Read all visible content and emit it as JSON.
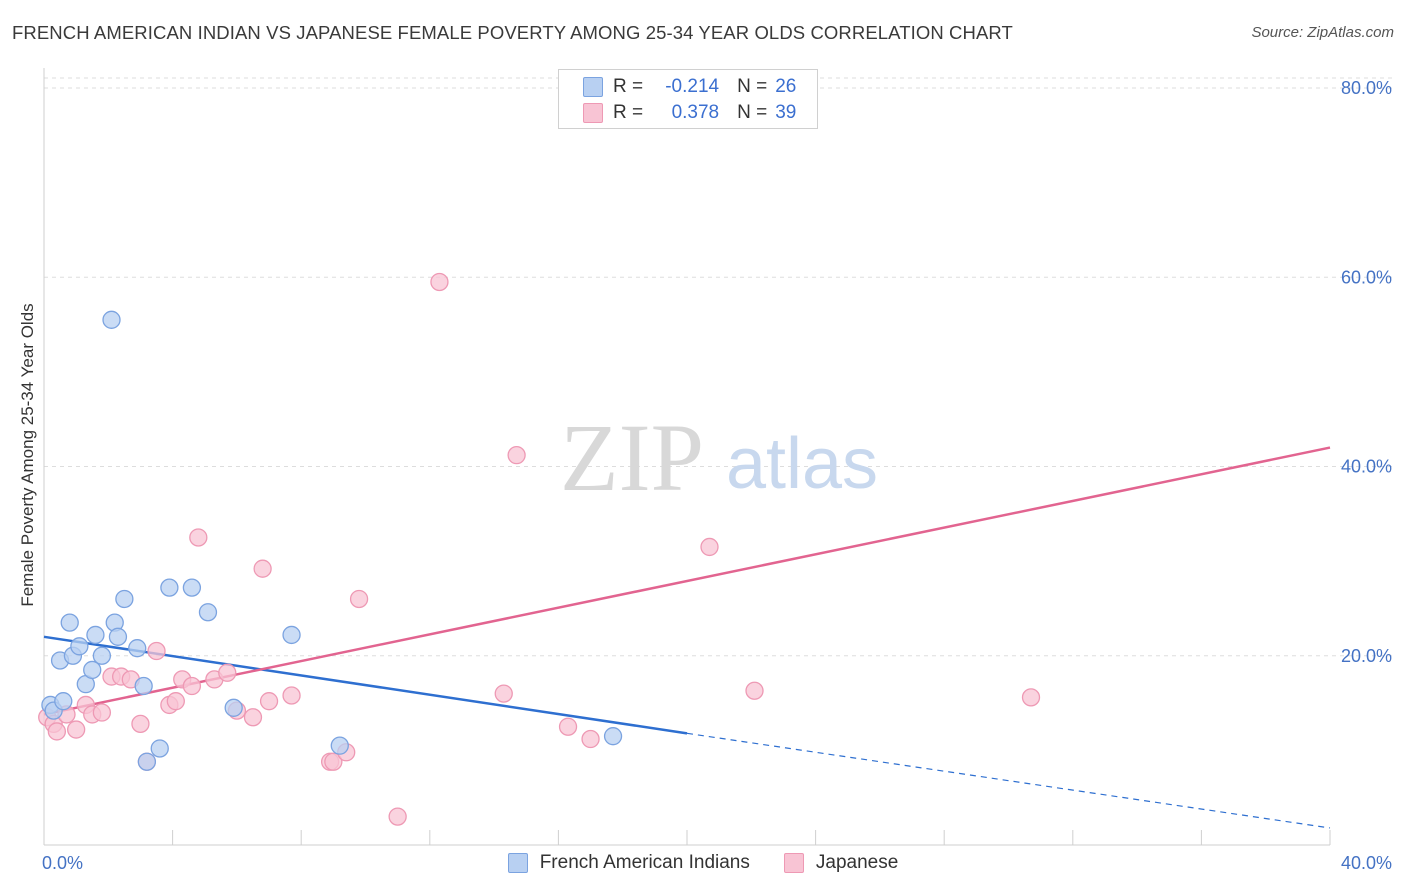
{
  "title": "FRENCH AMERICAN INDIAN VS JAPANESE FEMALE POVERTY AMONG 25-34 YEAR OLDS CORRELATION CHART",
  "source": "Source: ZipAtlas.com",
  "watermark": {
    "zip": "ZIP",
    "atlas": "atlas"
  },
  "legend": {
    "rows": [
      {
        "r_label": "R =",
        "r_value": "-0.214",
        "n_label": "N =",
        "n_value": "26"
      },
      {
        "r_label": "R =",
        "r_value": "0.378",
        "n_label": "N =",
        "n_value": "39"
      }
    ]
  },
  "bottom_legend": [
    "French American Indians",
    "Japanese"
  ],
  "colors": {
    "blue_fill": "#b8d0f2",
    "blue_stroke": "#7ba3e0",
    "blue_line": "#2e6fd0",
    "pink_fill": "#f8c4d4",
    "pink_stroke": "#ee99b4",
    "pink_line": "#e26490",
    "axis_label": "#4472c4",
    "grid": "#dddddd"
  },
  "chart_data": {
    "type": "scatter",
    "title": "FRENCH AMERICAN INDIAN VS JAPANESE FEMALE POVERTY AMONG 25-34 YEAR OLDS CORRELATION CHART",
    "xlabel": "",
    "ylabel": "Female Poverty Among 25-34 Year Olds",
    "xlim": [
      0,
      40
    ],
    "ylim": [
      0,
      80
    ],
    "x_tick_labels": [
      "0.0%",
      "40.0%"
    ],
    "y_ticks": [
      20,
      40,
      60,
      80
    ],
    "y_tick_labels": [
      "20.0%",
      "40.0%",
      "60.0%",
      "80.0%"
    ],
    "series": [
      {
        "name": "French American Indians",
        "r": -0.214,
        "n": 26,
        "points": [
          [
            0.2,
            14.8
          ],
          [
            0.3,
            14.2
          ],
          [
            0.6,
            15.2
          ],
          [
            0.5,
            19.5
          ],
          [
            0.8,
            23.5
          ],
          [
            0.9,
            20.0
          ],
          [
            1.1,
            21.0
          ],
          [
            1.3,
            17.0
          ],
          [
            1.5,
            18.5
          ],
          [
            1.6,
            22.2
          ],
          [
            1.8,
            20.0
          ],
          [
            2.2,
            23.5
          ],
          [
            2.3,
            22.0
          ],
          [
            2.5,
            26.0
          ],
          [
            2.1,
            55.5
          ],
          [
            2.9,
            20.8
          ],
          [
            3.1,
            16.8
          ],
          [
            3.2,
            8.8
          ],
          [
            3.6,
            10.2
          ],
          [
            3.9,
            27.2
          ],
          [
            4.6,
            27.2
          ],
          [
            5.1,
            24.6
          ],
          [
            5.9,
            14.5
          ],
          [
            7.7,
            22.2
          ],
          [
            9.2,
            10.5
          ],
          [
            17.7,
            11.5
          ]
        ],
        "trend": {
          "x": [
            0,
            20
          ],
          "y": [
            22.0,
            11.8
          ],
          "dashed_to": [
            40,
            1.8
          ]
        }
      },
      {
        "name": "Japanese",
        "r": 0.378,
        "n": 39,
        "points": [
          [
            0.1,
            13.5
          ],
          [
            0.3,
            12.8
          ],
          [
            0.4,
            12.0
          ],
          [
            0.7,
            13.8
          ],
          [
            1.0,
            12.2
          ],
          [
            1.3,
            14.8
          ],
          [
            1.5,
            13.8
          ],
          [
            1.8,
            14.0
          ],
          [
            2.1,
            17.8
          ],
          [
            2.4,
            17.8
          ],
          [
            2.7,
            17.5
          ],
          [
            3.0,
            12.8
          ],
          [
            3.2,
            8.8
          ],
          [
            3.5,
            20.5
          ],
          [
            3.9,
            14.8
          ],
          [
            4.1,
            15.2
          ],
          [
            4.3,
            17.5
          ],
          [
            4.6,
            16.8
          ],
          [
            4.8,
            32.5
          ],
          [
            5.3,
            17.5
          ],
          [
            5.7,
            18.2
          ],
          [
            6.0,
            14.2
          ],
          [
            6.5,
            13.5
          ],
          [
            6.8,
            29.2
          ],
          [
            7.0,
            15.2
          ],
          [
            7.7,
            15.8
          ],
          [
            8.9,
            8.8
          ],
          [
            9.0,
            8.8
          ],
          [
            9.4,
            9.8
          ],
          [
            9.8,
            26.0
          ],
          [
            11.0,
            3.0
          ],
          [
            12.3,
            59.5
          ],
          [
            14.3,
            16.0
          ],
          [
            14.7,
            41.2
          ],
          [
            16.3,
            12.5
          ],
          [
            17.0,
            11.2
          ],
          [
            20.7,
            31.5
          ],
          [
            22.1,
            16.3
          ],
          [
            30.7,
            15.6
          ]
        ],
        "trend": {
          "x": [
            0,
            40
          ],
          "y": [
            13.8,
            42.0
          ]
        }
      }
    ]
  }
}
